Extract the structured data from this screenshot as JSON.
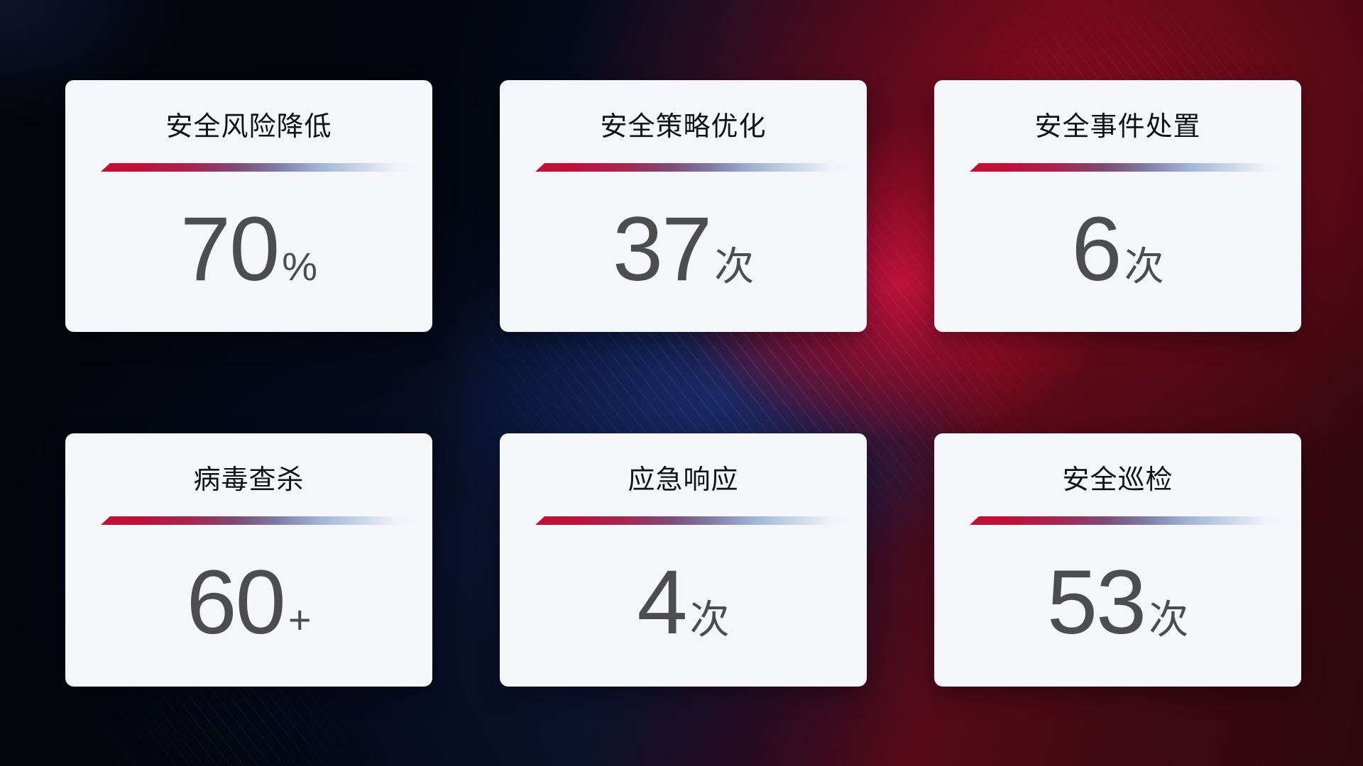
{
  "theme": {
    "card_background": "#f4f6fa",
    "title_color": "#121212",
    "value_color": "#4d4d4d",
    "divider_red": "#c60f33",
    "divider_blue": "#9fb3d4",
    "background_red": "#b01238",
    "background_blue": "#14307a",
    "background_dark": "#03060f"
  },
  "cards": [
    {
      "title": "安全风险降低",
      "value": "70",
      "unit": "%"
    },
    {
      "title": "安全策略优化",
      "value": "37",
      "unit": "次"
    },
    {
      "title": "安全事件处置",
      "value": "6",
      "unit": "次"
    },
    {
      "title": "病毒查杀",
      "value": "60",
      "unit": "+"
    },
    {
      "title": "应急响应",
      "value": "4",
      "unit": "次"
    },
    {
      "title": "安全巡检",
      "value": "53",
      "unit": "次"
    }
  ]
}
